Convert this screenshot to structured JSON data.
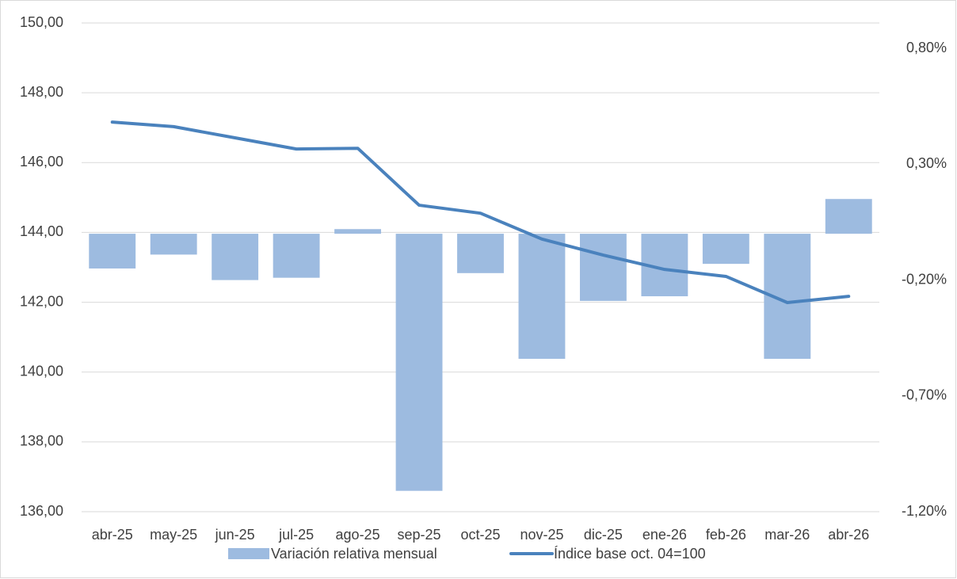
{
  "chart_data": {
    "type": "bar-line",
    "categories": [
      "abr-25",
      "may-25",
      "jun-25",
      "jul-25",
      "ago-25",
      "sep-25",
      "oct-25",
      "nov-25",
      "dic-25",
      "ene-26",
      "feb-26",
      "mar-26",
      "abr-26"
    ],
    "series": [
      {
        "name": "Variación relativa mensual",
        "type": "bar",
        "axis": "y2",
        "color": "#9dbbe0",
        "values": [
          -0.15,
          -0.09,
          -0.2,
          -0.19,
          0.02,
          -1.11,
          -0.17,
          -0.54,
          -0.29,
          -0.27,
          -0.13,
          -0.54,
          0.15
        ]
      },
      {
        "name": "Índice base oct. 04=100",
        "type": "line",
        "axis": "y",
        "color": "#4a82bd",
        "values": [
          147.16,
          147.03,
          146.71,
          146.39,
          146.41,
          144.78,
          144.55,
          143.81,
          143.35,
          142.94,
          142.74,
          141.99,
          142.17
        ]
      }
    ],
    "ylim": [
      136,
      150
    ],
    "yticks": [
      {
        "value": 136,
        "label": "136,00"
      },
      {
        "value": 138,
        "label": "138,00"
      },
      {
        "value": 140,
        "label": "140,00"
      },
      {
        "value": 142,
        "label": "142,00"
      },
      {
        "value": 144,
        "label": "144,00"
      },
      {
        "value": 146,
        "label": "146,00"
      },
      {
        "value": 148,
        "label": "148,00"
      },
      {
        "value": 150,
        "label": "150,00"
      }
    ],
    "y2lim": [
      -1.2,
      0.91
    ],
    "y2ticks": [
      {
        "value": -1.2,
        "label": "-1,20%"
      },
      {
        "value": -0.7,
        "label": "-0,70%"
      },
      {
        "value": -0.2,
        "label": "-0,20%"
      },
      {
        "value": 0.3,
        "label": "0,30%"
      },
      {
        "value": 0.8,
        "label": "0,80%"
      }
    ],
    "grid": true
  }
}
